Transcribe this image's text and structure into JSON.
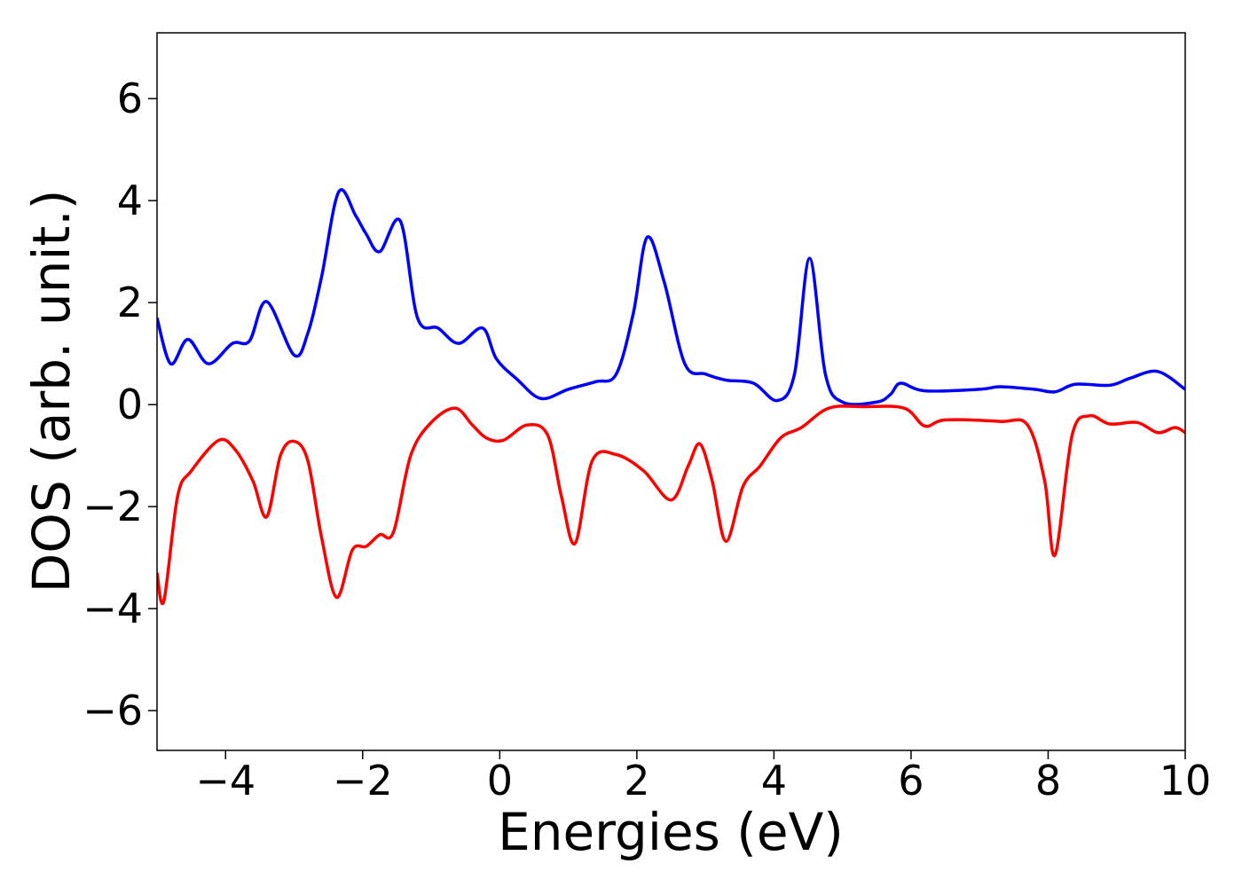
{
  "chart_data": {
    "type": "line",
    "xlabel": "Energies (eV)",
    "ylabel": "DOS (arb. unit.)",
    "xlim": [
      -5,
      10
    ],
    "ylim": [
      -6.78,
      7.29
    ],
    "xticks": [
      {
        "value": -4,
        "label": "−4"
      },
      {
        "value": -2,
        "label": "−2"
      },
      0,
      2,
      4,
      6,
      8,
      10
    ],
    "yticks": [
      {
        "value": -6,
        "label": "−6"
      },
      {
        "value": -4,
        "label": "−4"
      },
      {
        "value": -2,
        "label": "−2"
      },
      0,
      2,
      4,
      6
    ],
    "grid": false,
    "series": [
      {
        "color": "#0000ff",
        "x": [
          -5,
          -4.8,
          -4.55,
          -4.25,
          -3.9,
          -3.65,
          -3.4,
          -3.0,
          -2.8,
          -2.6,
          -2.35,
          -2.1,
          -1.95,
          -1.75,
          -1.45,
          -1.2,
          -0.9,
          -0.6,
          -0.25,
          -0.05,
          0.25,
          0.6,
          1.0,
          1.4,
          1.7,
          1.95,
          2.15,
          2.4,
          2.7,
          3.0,
          3.3,
          3.7,
          4.05,
          4.3,
          4.52,
          4.75,
          5.0,
          5.5,
          5.7,
          5.85,
          6.2,
          7.0,
          7.3,
          7.8,
          8.1,
          8.4,
          8.9,
          9.2,
          9.6,
          10
        ],
        "values": [
          1.7,
          0.8,
          1.28,
          0.8,
          1.2,
          1.25,
          2.02,
          0.97,
          1.4,
          2.5,
          4.17,
          3.7,
          3.35,
          3.0,
          3.6,
          1.7,
          1.5,
          1.2,
          1.5,
          0.9,
          0.5,
          0.12,
          0.3,
          0.45,
          0.6,
          1.8,
          3.28,
          2.4,
          0.8,
          0.6,
          0.48,
          0.42,
          0.08,
          0.6,
          2.87,
          0.6,
          0.05,
          0.05,
          0.2,
          0.42,
          0.27,
          0.3,
          0.35,
          0.3,
          0.25,
          0.4,
          0.38,
          0.52,
          0.65,
          0.3
        ]
      },
      {
        "color": "#ff0000",
        "x": [
          -5,
          -4.9,
          -4.7,
          -4.5,
          -4.1,
          -3.85,
          -3.6,
          -3.4,
          -3.2,
          -3.0,
          -2.8,
          -2.6,
          -2.38,
          -2.15,
          -1.95,
          -1.75,
          -1.55,
          -1.3,
          -1.0,
          -0.65,
          -0.4,
          -0.2,
          0.05,
          0.4,
          0.7,
          0.9,
          1.1,
          1.35,
          1.7,
          2.1,
          2.5,
          2.75,
          2.92,
          3.1,
          3.3,
          3.55,
          3.8,
          4.1,
          4.4,
          4.8,
          5.3,
          5.9,
          6.2,
          6.5,
          7.3,
          7.7,
          7.95,
          8.1,
          8.35,
          8.6,
          8.9,
          9.3,
          9.6,
          9.85,
          10
        ],
        "values": [
          -3.3,
          -3.85,
          -1.8,
          -1.3,
          -0.7,
          -0.9,
          -1.5,
          -2.2,
          -1.0,
          -0.72,
          -1.1,
          -2.6,
          -3.78,
          -2.85,
          -2.78,
          -2.55,
          -2.5,
          -1.0,
          -0.35,
          -0.07,
          -0.4,
          -0.65,
          -0.7,
          -0.4,
          -0.6,
          -1.8,
          -2.72,
          -1.1,
          -0.98,
          -1.3,
          -1.87,
          -1.2,
          -0.77,
          -1.5,
          -2.68,
          -1.6,
          -1.2,
          -0.65,
          -0.45,
          -0.07,
          -0.04,
          -0.07,
          -0.42,
          -0.3,
          -0.33,
          -0.4,
          -1.5,
          -2.95,
          -0.6,
          -0.22,
          -0.38,
          -0.35,
          -0.55,
          -0.45,
          -0.55
        ]
      }
    ]
  }
}
